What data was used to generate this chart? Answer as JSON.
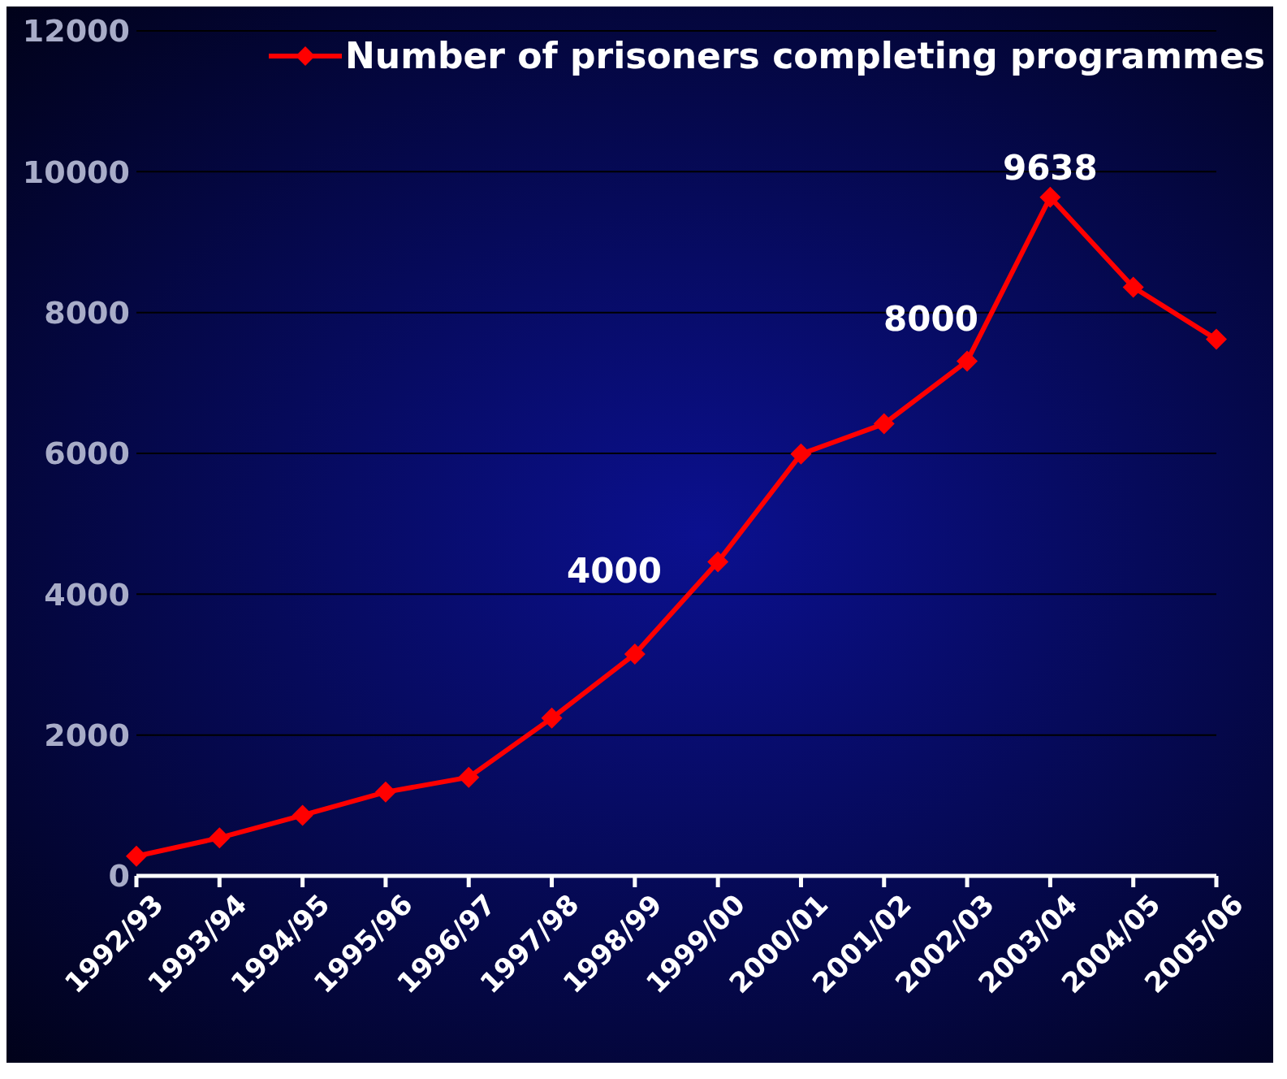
{
  "chart_data": {
    "type": "line",
    "categories": [
      "1992/93",
      "1993/94",
      "1994/95",
      "1995/96",
      "1996/97",
      "1997/98",
      "1998/99",
      "1999/00",
      "2000/01",
      "2001/02",
      "2002/03",
      "2003/04",
      "2004/05",
      "2005/06"
    ],
    "series": [
      {
        "name": "Number of prisoners completing programmes",
        "color": "#ff0000",
        "values": [
          280,
          540,
          860,
          1190,
          1400,
          2240,
          3150,
          4460,
          5990,
          6420,
          7310,
          9638,
          8360,
          7620
        ]
      }
    ],
    "ylim": [
      0,
      12000
    ],
    "yticks": [
      0,
      2000,
      4000,
      6000,
      8000,
      10000,
      12000
    ],
    "grid": "y",
    "legend": "top right",
    "marker": "diamond",
    "line_style": "solid",
    "annotations": [
      "4000",
      "8000",
      {
        "text": "9638",
        "x": "2003/04",
        "y": 9638
      }
    ]
  }
}
